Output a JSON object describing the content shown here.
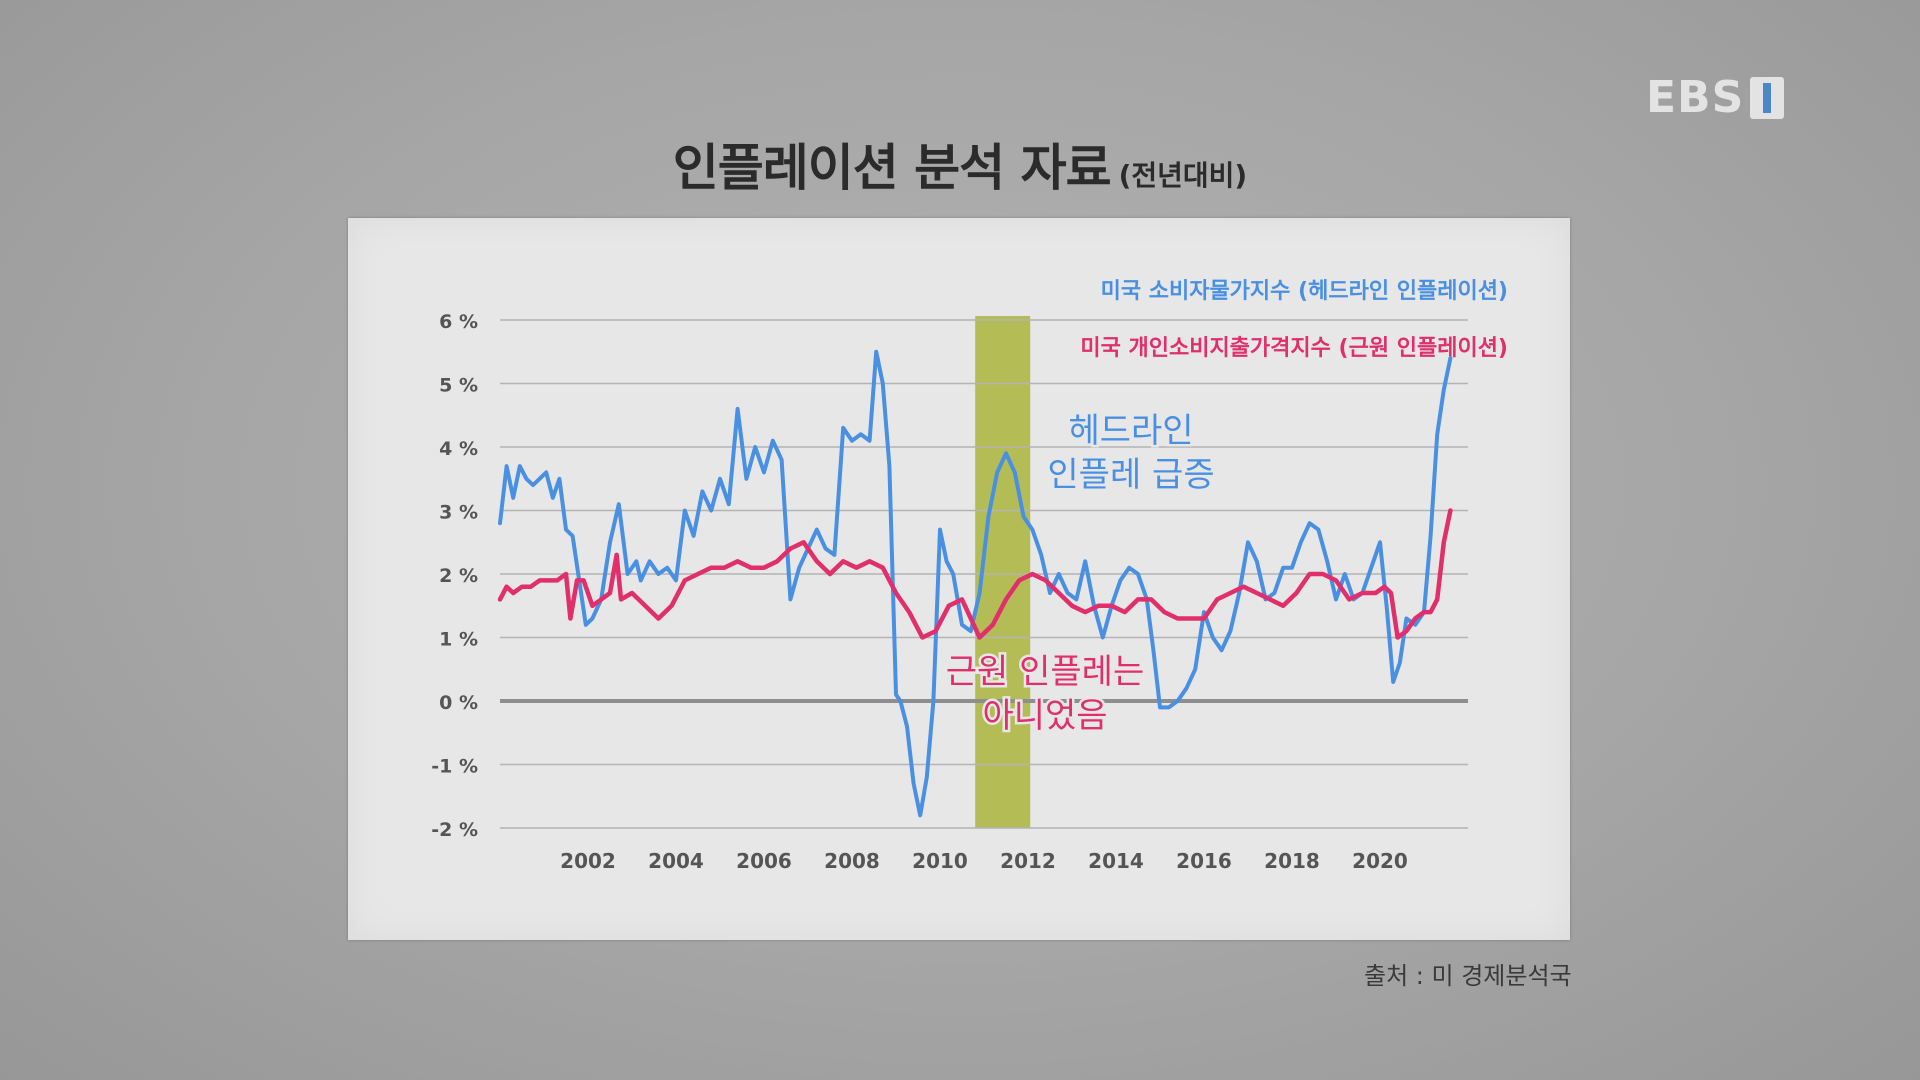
{
  "logo": {
    "text": "EBS"
  },
  "header": {
    "title": "인플레이션 분석 자료",
    "subtitle": "(전년대비)"
  },
  "source": "출처 : 미 경제분석국",
  "chart_data": {
    "type": "line",
    "ylim": [
      -2,
      6
    ],
    "xlim": [
      2000,
      2022
    ],
    "grid": true,
    "y_ticks": [
      6,
      5,
      4,
      3,
      2,
      1,
      0,
      -1,
      -2
    ],
    "y_tick_labels": [
      "6 %",
      "5 %",
      "4 %",
      "3 %",
      "2 %",
      "1 %",
      "0 %",
      "-1 %",
      "-2 %"
    ],
    "x_ticks": [
      2002,
      2004,
      2006,
      2008,
      2010,
      2012,
      2014,
      2016,
      2018,
      2020
    ],
    "x_tick_labels": [
      "2002",
      "2004",
      "2006",
      "2008",
      "2010",
      "2012",
      "2014",
      "2016",
      "2018",
      "2020"
    ],
    "highlight_band": {
      "x": [
        2010.8,
        2012.05
      ],
      "color": "#aab43c"
    },
    "legend": [
      {
        "label": "미국 소비자물가지수 (헤드라인 인플레이션)",
        "color": "#4a90e2"
      },
      {
        "label": "미국 개인소비지출가격지수 (근원 인플레이션)",
        "color": "#e02f6a"
      }
    ],
    "annotations": [
      {
        "lines": [
          "헤드라인",
          "인플레 급증"
        ],
        "color": "#4a90e2"
      },
      {
        "lines": [
          "근원 인플레는",
          "아니었음"
        ],
        "color": "#e02f6a"
      }
    ],
    "series": [
      {
        "color": "#4a90e2",
        "x": [
          2000.0,
          2000.15,
          2000.3,
          2000.45,
          2000.6,
          2000.75,
          2000.9,
          2001.05,
          2001.2,
          2001.35,
          2001.5,
          2001.65,
          2001.8,
          2001.95,
          2002.1,
          2002.3,
          2002.5,
          2002.7,
          2002.9,
          2003.1,
          2003.2,
          2003.4,
          2003.6,
          2003.8,
          2004.0,
          2004.2,
          2004.4,
          2004.6,
          2004.8,
          2005.0,
          2005.2,
          2005.4,
          2005.6,
          2005.8,
          2006.0,
          2006.2,
          2006.4,
          2006.6,
          2006.8,
          2007.0,
          2007.2,
          2007.4,
          2007.6,
          2007.8,
          2008.0,
          2008.2,
          2008.4,
          2008.55,
          2008.7,
          2008.85,
          2009.0,
          2009.1,
          2009.25,
          2009.4,
          2009.55,
          2009.7,
          2009.85,
          2010.0,
          2010.15,
          2010.3,
          2010.5,
          2010.7,
          2010.9,
          2011.1,
          2011.3,
          2011.5,
          2011.7,
          2011.9,
          2012.1,
          2012.3,
          2012.5,
          2012.7,
          2012.9,
          2013.1,
          2013.3,
          2013.5,
          2013.7,
          2013.9,
          2014.1,
          2014.3,
          2014.5,
          2014.7,
          2014.85,
          2015.0,
          2015.2,
          2015.4,
          2015.6,
          2015.8,
          2016.0,
          2016.2,
          2016.4,
          2016.6,
          2016.8,
          2017.0,
          2017.2,
          2017.4,
          2017.6,
          2017.8,
          2018.0,
          2018.2,
          2018.4,
          2018.6,
          2018.8,
          2019.0,
          2019.2,
          2019.4,
          2019.6,
          2019.8,
          2020.0,
          2020.15,
          2020.3,
          2020.45,
          2020.6,
          2020.8,
          2021.0,
          2021.15,
          2021.3,
          2021.45,
          2021.6
        ],
        "values": [
          2.8,
          3.7,
          3.2,
          3.7,
          3.5,
          3.4,
          3.5,
          3.6,
          3.2,
          3.5,
          2.7,
          2.6,
          1.9,
          1.2,
          1.3,
          1.6,
          2.5,
          3.1,
          2.0,
          2.2,
          1.9,
          2.2,
          2.0,
          2.1,
          1.9,
          3.0,
          2.6,
          3.3,
          3.0,
          3.5,
          3.1,
          4.6,
          3.5,
          4.0,
          3.6,
          4.1,
          3.8,
          1.6,
          2.1,
          2.4,
          2.7,
          2.4,
          2.3,
          4.3,
          4.1,
          4.2,
          4.1,
          5.5,
          5.0,
          3.7,
          0.1,
          0.0,
          -0.4,
          -1.3,
          -1.8,
          -1.2,
          0.0,
          2.7,
          2.2,
          2.0,
          1.2,
          1.1,
          1.7,
          2.9,
          3.6,
          3.9,
          3.6,
          2.9,
          2.7,
          2.3,
          1.7,
          2.0,
          1.7,
          1.6,
          2.2,
          1.5,
          1.0,
          1.5,
          1.9,
          2.1,
          2.0,
          1.6,
          0.8,
          -0.1,
          -0.1,
          0.0,
          0.2,
          0.5,
          1.4,
          1.0,
          0.8,
          1.1,
          1.7,
          2.5,
          2.2,
          1.6,
          1.7,
          2.1,
          2.1,
          2.5,
          2.8,
          2.7,
          2.2,
          1.6,
          2.0,
          1.6,
          1.7,
          2.1,
          2.5,
          1.5,
          0.3,
          0.6,
          1.3,
          1.2,
          1.4,
          2.6,
          4.2,
          4.9,
          5.4
        ]
      },
      {
        "color": "#e02f6a",
        "x": [
          2000.0,
          2000.15,
          2000.3,
          2000.5,
          2000.7,
          2000.9,
          2001.1,
          2001.3,
          2001.5,
          2001.6,
          2001.75,
          2001.9,
          2002.1,
          2002.3,
          2002.5,
          2002.65,
          2002.75,
          2003.0,
          2003.3,
          2003.6,
          2003.9,
          2004.2,
          2004.5,
          2004.8,
          2005.1,
          2005.4,
          2005.7,
          2006.0,
          2006.3,
          2006.6,
          2006.9,
          2007.2,
          2007.5,
          2007.8,
          2008.1,
          2008.4,
          2008.7,
          2009.0,
          2009.3,
          2009.6,
          2009.9,
          2010.2,
          2010.5,
          2010.7,
          2010.9,
          2011.2,
          2011.5,
          2011.8,
          2012.1,
          2012.4,
          2012.7,
          2013.0,
          2013.3,
          2013.6,
          2013.9,
          2014.2,
          2014.5,
          2014.8,
          2015.1,
          2015.4,
          2015.7,
          2016.0,
          2016.3,
          2016.6,
          2016.9,
          2017.2,
          2017.5,
          2017.8,
          2018.1,
          2018.4,
          2018.7,
          2019.0,
          2019.3,
          2019.6,
          2019.9,
          2020.1,
          2020.25,
          2020.4,
          2020.6,
          2020.8,
          2021.0,
          2021.15,
          2021.3,
          2021.45,
          2021.6
        ],
        "values": [
          1.6,
          1.8,
          1.7,
          1.8,
          1.8,
          1.9,
          1.9,
          1.9,
          2.0,
          1.3,
          1.9,
          1.9,
          1.5,
          1.6,
          1.7,
          2.3,
          1.6,
          1.7,
          1.5,
          1.3,
          1.5,
          1.9,
          2.0,
          2.1,
          2.1,
          2.2,
          2.1,
          2.1,
          2.2,
          2.4,
          2.5,
          2.2,
          2.0,
          2.2,
          2.1,
          2.2,
          2.1,
          1.7,
          1.4,
          1.0,
          1.1,
          1.5,
          1.6,
          1.3,
          1.0,
          1.2,
          1.6,
          1.9,
          2.0,
          1.9,
          1.7,
          1.5,
          1.4,
          1.5,
          1.5,
          1.4,
          1.6,
          1.6,
          1.4,
          1.3,
          1.3,
          1.3,
          1.6,
          1.7,
          1.8,
          1.7,
          1.6,
          1.5,
          1.7,
          2.0,
          2.0,
          1.9,
          1.6,
          1.7,
          1.7,
          1.8,
          1.7,
          1.0,
          1.1,
          1.3,
          1.4,
          1.4,
          1.6,
          2.5,
          3.0
        ]
      }
    ]
  }
}
